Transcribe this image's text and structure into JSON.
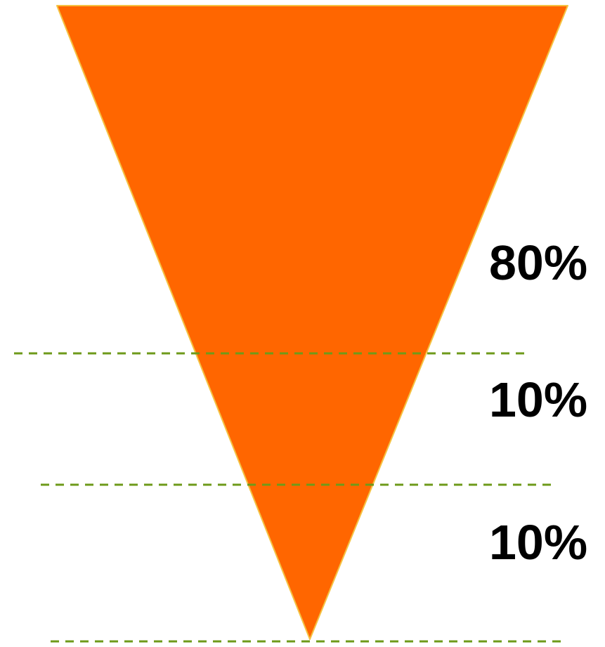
{
  "funnel": {
    "fill_color": "#FF6600",
    "edge_color": "#F5C242",
    "divider_color": "#6E9A1A",
    "segments": [
      {
        "label": "80%"
      },
      {
        "label": "10%"
      },
      {
        "label": "10%"
      }
    ]
  }
}
